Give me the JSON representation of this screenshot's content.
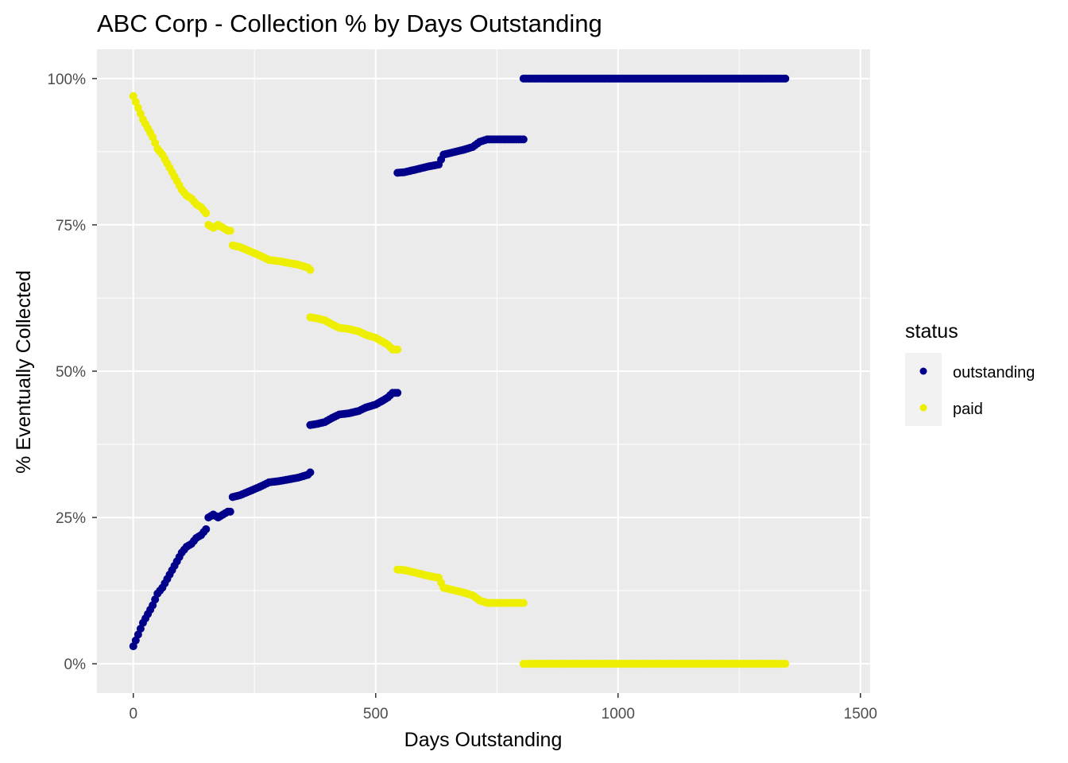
{
  "chart_data": {
    "type": "scatter",
    "title": "ABC Corp  - Collection % by Days Outstanding",
    "xlabel": "Days Outstanding",
    "ylabel": "% Eventually Collected",
    "xlim": [
      -75,
      1520
    ],
    "ylim": [
      -5,
      105
    ],
    "x_ticks": [
      0,
      500,
      1000,
      1500
    ],
    "x_tick_labels": [
      "0",
      "500",
      "1000",
      "1500"
    ],
    "y_ticks": [
      0,
      25,
      50,
      75,
      100
    ],
    "y_tick_labels": [
      "0%",
      "25%",
      "50%",
      "75%",
      "100%"
    ],
    "grid": true,
    "legend": {
      "title": "status",
      "position": "right",
      "items": [
        {
          "label": "outstanding",
          "color": "#00008b"
        },
        {
          "label": "paid",
          "color": "#eeee00"
        }
      ]
    },
    "series": [
      {
        "name": "outstanding",
        "color": "#00008b",
        "points": [
          [
            0,
            3.0
          ],
          [
            10,
            5.0
          ],
          [
            20,
            7.0
          ],
          [
            30,
            8.5
          ],
          [
            40,
            10.0
          ],
          [
            50,
            12.0
          ],
          [
            60,
            13.0
          ],
          [
            70,
            14.5
          ],
          [
            80,
            16.0
          ],
          [
            90,
            17.5
          ],
          [
            100,
            19.0
          ],
          [
            110,
            20.0
          ],
          [
            120,
            20.5
          ],
          [
            130,
            21.5
          ],
          [
            140,
            22.0
          ],
          [
            150,
            23.0
          ],
          [
            155,
            25.0
          ],
          [
            165,
            25.5
          ],
          [
            175,
            25.0
          ],
          [
            185,
            25.5
          ],
          [
            195,
            26.0
          ],
          [
            200,
            26.0
          ],
          [
            205,
            28.5
          ],
          [
            220,
            28.8
          ],
          [
            240,
            29.5
          ],
          [
            260,
            30.2
          ],
          [
            280,
            31.0
          ],
          [
            300,
            31.2
          ],
          [
            320,
            31.5
          ],
          [
            340,
            31.8
          ],
          [
            360,
            32.3
          ],
          [
            365,
            32.7
          ],
          [
            365,
            40.8
          ],
          [
            380,
            41.0
          ],
          [
            395,
            41.3
          ],
          [
            410,
            42.0
          ],
          [
            425,
            42.6
          ],
          [
            445,
            42.8
          ],
          [
            465,
            43.2
          ],
          [
            480,
            43.8
          ],
          [
            500,
            44.3
          ],
          [
            515,
            45.0
          ],
          [
            525,
            45.5
          ],
          [
            535,
            46.3
          ],
          [
            545,
            46.3
          ],
          [
            545,
            83.9
          ],
          [
            560,
            84.0
          ],
          [
            575,
            84.3
          ],
          [
            590,
            84.6
          ],
          [
            610,
            85.0
          ],
          [
            630,
            85.3
          ],
          [
            640,
            87.0
          ],
          [
            660,
            87.4
          ],
          [
            680,
            87.8
          ],
          [
            700,
            88.3
          ],
          [
            715,
            89.2
          ],
          [
            730,
            89.6
          ],
          [
            760,
            89.6
          ],
          [
            790,
            89.6
          ],
          [
            805,
            89.6
          ],
          [
            805,
            100
          ],
          [
            850,
            100
          ],
          [
            900,
            100
          ],
          [
            950,
            100
          ],
          [
            1000,
            100
          ],
          [
            1050,
            100
          ],
          [
            1100,
            100
          ],
          [
            1150,
            100
          ],
          [
            1200,
            100
          ],
          [
            1250,
            100
          ],
          [
            1300,
            100
          ],
          [
            1345,
            100
          ]
        ]
      },
      {
        "name": "paid",
        "color": "#eeee00",
        "points": [
          [
            0,
            97.0
          ],
          [
            10,
            95.0
          ],
          [
            20,
            93.0
          ],
          [
            30,
            91.5
          ],
          [
            40,
            90.0
          ],
          [
            50,
            88.0
          ],
          [
            60,
            87.0
          ],
          [
            70,
            85.5
          ],
          [
            80,
            84.0
          ],
          [
            90,
            82.5
          ],
          [
            100,
            81.0
          ],
          [
            110,
            80.0
          ],
          [
            120,
            79.5
          ],
          [
            130,
            78.5
          ],
          [
            140,
            78.0
          ],
          [
            150,
            77.0
          ],
          [
            155,
            75.0
          ],
          [
            165,
            74.5
          ],
          [
            175,
            75.0
          ],
          [
            185,
            74.5
          ],
          [
            195,
            74.0
          ],
          [
            200,
            74.0
          ],
          [
            205,
            71.5
          ],
          [
            220,
            71.2
          ],
          [
            240,
            70.5
          ],
          [
            260,
            69.8
          ],
          [
            280,
            69.0
          ],
          [
            300,
            68.8
          ],
          [
            320,
            68.5
          ],
          [
            340,
            68.2
          ],
          [
            360,
            67.7
          ],
          [
            365,
            67.3
          ],
          [
            365,
            59.2
          ],
          [
            380,
            59.0
          ],
          [
            395,
            58.7
          ],
          [
            410,
            58.0
          ],
          [
            425,
            57.4
          ],
          [
            445,
            57.2
          ],
          [
            465,
            56.8
          ],
          [
            480,
            56.2
          ],
          [
            500,
            55.7
          ],
          [
            515,
            55.0
          ],
          [
            525,
            54.5
          ],
          [
            535,
            53.7
          ],
          [
            545,
            53.7
          ],
          [
            545,
            16.1
          ],
          [
            560,
            16.0
          ],
          [
            575,
            15.7
          ],
          [
            590,
            15.4
          ],
          [
            610,
            15.0
          ],
          [
            630,
            14.7
          ],
          [
            640,
            13.0
          ],
          [
            660,
            12.6
          ],
          [
            680,
            12.2
          ],
          [
            700,
            11.7
          ],
          [
            715,
            10.8
          ],
          [
            730,
            10.4
          ],
          [
            760,
            10.4
          ],
          [
            790,
            10.4
          ],
          [
            805,
            10.4
          ],
          [
            805,
            0
          ],
          [
            850,
            0
          ],
          [
            900,
            0
          ],
          [
            950,
            0
          ],
          [
            1000,
            0
          ],
          [
            1050,
            0
          ],
          [
            1100,
            0
          ],
          [
            1150,
            0
          ],
          [
            1200,
            0
          ],
          [
            1250,
            0
          ],
          [
            1300,
            0
          ],
          [
            1345,
            0
          ]
        ]
      }
    ]
  }
}
